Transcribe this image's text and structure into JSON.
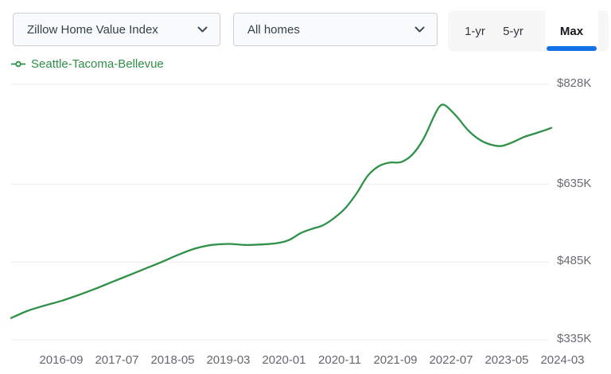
{
  "toolbar": {
    "metric_dropdown": {
      "value": "Zillow Home Value Index"
    },
    "home_type_dropdown": {
      "value": "All homes"
    },
    "range_tabs": {
      "items": [
        {
          "label": "1-yr",
          "selected": false
        },
        {
          "label": "5-yr",
          "selected": false
        },
        {
          "label": "Max",
          "selected": true
        }
      ],
      "selected_underline_color": "#1373e6"
    }
  },
  "legend": {
    "label": "Seattle-Tacoma-Bellevue",
    "marker": "line-with-circle",
    "color": "#2e9147"
  },
  "chart_data": {
    "type": "line",
    "legend_position": "top-left",
    "grid": true,
    "line_color": "#2e9147",
    "gridline_color": "#ececee",
    "axis_label_color": "#66696e",
    "y_unit": "USD thousands",
    "ylim": [
      335,
      828
    ],
    "x_ticks": [
      "2016-09",
      "2017-07",
      "2018-05",
      "2019-03",
      "2020-01",
      "2020-11",
      "2021-09",
      "2022-07",
      "2023-05",
      "2024-03"
    ],
    "y_ticks": [
      {
        "label": "$828K",
        "value": 828
      },
      {
        "label": "$635K",
        "value": 635
      },
      {
        "label": "$485K",
        "value": 485
      },
      {
        "label": "$335K",
        "value": 335
      }
    ],
    "series": [
      {
        "name": "Seattle-Tacoma-Bellevue",
        "color": "#2e9147",
        "x": [
          "2015-12",
          "2016-03",
          "2016-06",
          "2016-09",
          "2016-12",
          "2017-03",
          "2017-06",
          "2017-09",
          "2017-12",
          "2018-03",
          "2018-06",
          "2018-09",
          "2018-12",
          "2019-03",
          "2019-06",
          "2019-09",
          "2019-12",
          "2020-02",
          "2020-04",
          "2020-06",
          "2020-08",
          "2020-10",
          "2020-12",
          "2021-02",
          "2021-04",
          "2021-06",
          "2021-08",
          "2021-10",
          "2021-12",
          "2022-02",
          "2022-04",
          "2022-05",
          "2022-06",
          "2022-08",
          "2022-10",
          "2022-12",
          "2023-02",
          "2023-04",
          "2023-06",
          "2023-08",
          "2023-10",
          "2023-12",
          "2024-01"
        ],
        "values": [
          377,
          391,
          401,
          410,
          421,
          433,
          446,
          459,
          472,
          485,
          499,
          511,
          518,
          520,
          518,
          519,
          522,
          528,
          541,
          549,
          556,
          570,
          589,
          617,
          651,
          670,
          677,
          678,
          692,
          722,
          768,
          786,
          787,
          766,
          740,
          722,
          712,
          709,
          716,
          726,
          733,
          740,
          744
        ]
      }
    ]
  }
}
